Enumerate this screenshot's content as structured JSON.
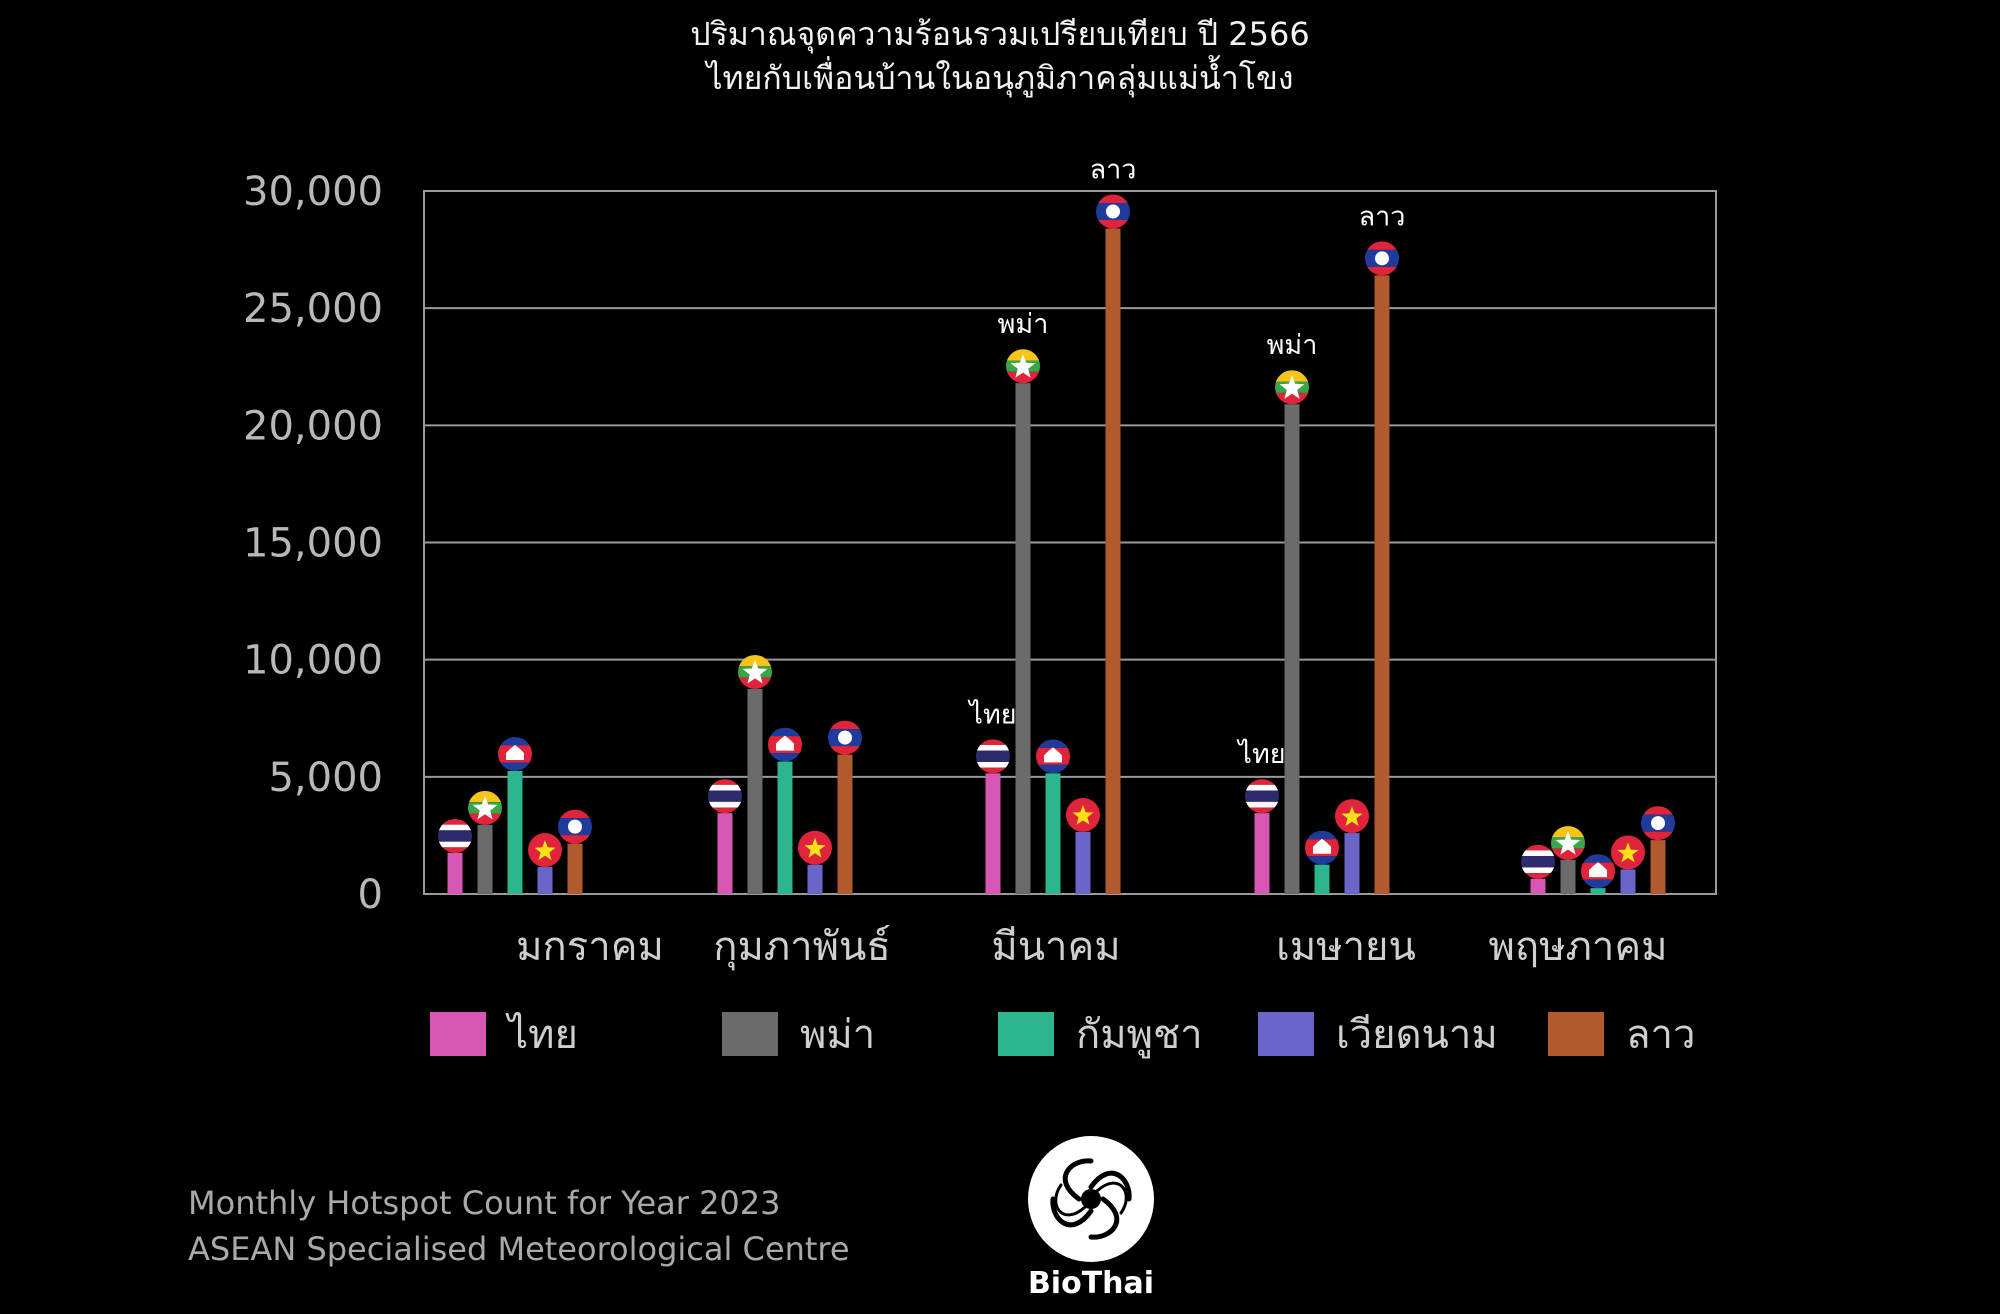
{
  "chart_data": {
    "type": "bar",
    "title": "ปริมาณจุดความร้อนรวมเปรียบเทียบ ปี 2566",
    "subtitle": "ไทยกับเพื่อนบ้านในอนุภูมิภาคลุ่มแม่น้ำโขง",
    "categories": [
      "มกราคม",
      "กุมภาพันธ์",
      "มีนาคม",
      "เมษายน",
      "พฤษภาคม"
    ],
    "series": [
      {
        "name": "ไทย",
        "color": "#d957b4",
        "flag": "thailand-flag-icon",
        "values": [
          1750,
          3450,
          5150,
          3450,
          650
        ]
      },
      {
        "name": "พม่า",
        "color": "#6b6b6b",
        "flag": "myanmar-flag-icon",
        "values": [
          2950,
          8750,
          21800,
          20900,
          1450
        ]
      },
      {
        "name": "กัมพูชา",
        "color": "#2db58d",
        "flag": "cambodia-flag-icon",
        "values": [
          5250,
          5650,
          5150,
          1250,
          250
        ]
      },
      {
        "name": "เวียดนาม",
        "color": "#6b64c9",
        "flag": "vietnam-flag-icon",
        "values": [
          1150,
          1250,
          2650,
          2600,
          1050
        ]
      },
      {
        "name": "ลาว",
        "color": "#b15a2e",
        "flag": "laos-flag-icon",
        "values": [
          2150,
          5950,
          28400,
          26400,
          2300
        ]
      }
    ],
    "ylim": [
      0,
      30000
    ],
    "yticks": [
      "0",
      "5,000",
      "10,000",
      "15,000",
      "20,000",
      "25,000",
      "30,000"
    ],
    "ytick_values": [
      0,
      5000,
      10000,
      15000,
      20000,
      25000,
      30000
    ],
    "grid": true,
    "legend_position": "bottom",
    "annotations": [
      {
        "text": "ลาว",
        "category": 2,
        "series": 4
      },
      {
        "text": "พม่า",
        "category": 2,
        "series": 1
      },
      {
        "text": "ไทย",
        "category": 2,
        "series": 0
      },
      {
        "text": "ลาว",
        "category": 3,
        "series": 4
      },
      {
        "text": "พม่า",
        "category": 3,
        "series": 1
      },
      {
        "text": "ไทย",
        "category": 3,
        "series": 0
      }
    ]
  },
  "footer": {
    "line1": "Monthly Hotspot Count for Year 2023",
    "line2": "ASEAN Specialised Meteorological Centre"
  },
  "logo": {
    "text": "BioThai"
  }
}
